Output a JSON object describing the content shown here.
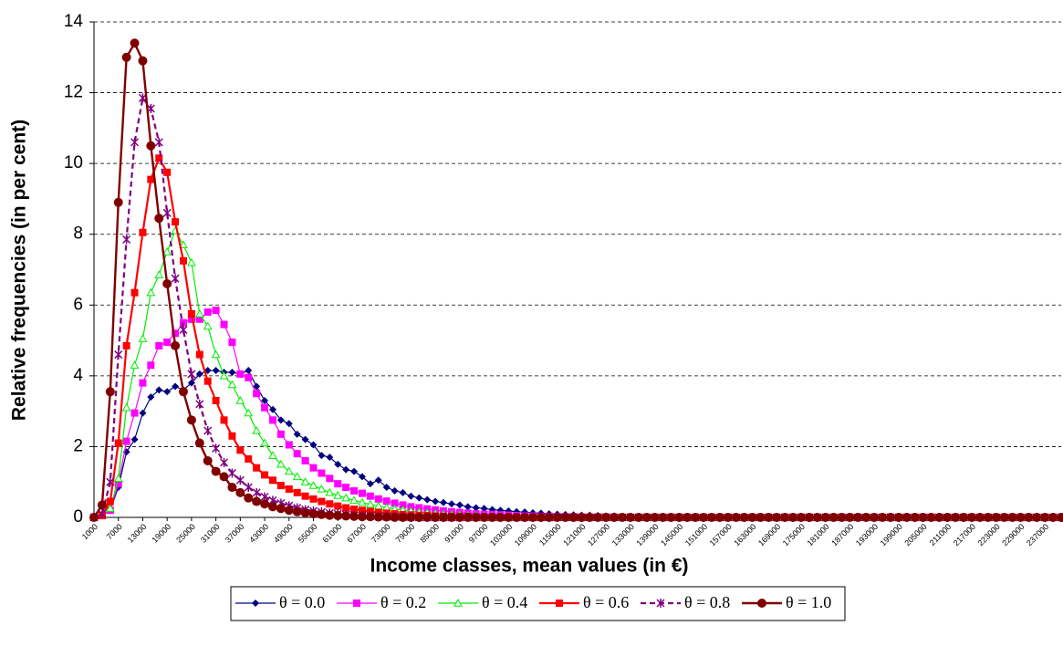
{
  "chart_data": {
    "type": "line",
    "x_label": "Income classes, mean values (in €)",
    "y_label": "Relative frequencies (in per cent)",
    "categories": [
      "1000",
      null,
      null,
      "7000",
      null,
      null,
      "13000",
      null,
      null,
      "19000",
      null,
      null,
      "25000",
      null,
      null,
      "31000",
      null,
      null,
      "37000",
      null,
      null,
      "43000",
      null,
      null,
      "49000",
      null,
      null,
      "55000",
      null,
      null,
      "61000",
      null,
      null,
      "67000",
      null,
      null,
      "73000",
      null,
      null,
      "79000",
      null,
      null,
      "85000",
      null,
      null,
      "91000",
      null,
      null,
      "97000",
      null,
      null,
      "103000",
      null,
      null,
      "109000",
      null,
      null,
      "115000",
      null,
      null,
      "121000",
      null,
      null,
      "127000",
      null,
      null,
      "133000",
      null,
      null,
      "139000",
      null,
      null,
      "145000",
      null,
      null,
      "151000",
      null,
      null,
      "157000",
      null,
      null,
      "163000",
      null,
      null,
      "169000",
      null,
      null,
      "175000",
      null,
      null,
      "181000",
      null,
      null,
      "187000",
      null,
      null,
      "193000",
      null,
      null,
      "199000",
      null,
      null,
      "205000",
      null,
      null,
      "211000",
      null,
      null,
      "217000",
      null,
      null,
      "223000",
      null,
      null,
      "229000",
      null,
      null,
      "237000",
      null,
      null
    ],
    "ylim": [
      0,
      14
    ],
    "yticks": [
      0,
      2,
      4,
      6,
      8,
      10,
      12,
      14
    ],
    "grid": true,
    "legend": "bottom",
    "series": [
      {
        "name": "θ = 0.0",
        "color": "#000080",
        "marker": "diamond",
        "dashed": false,
        "width": 1.2,
        "values": [
          0,
          0.05,
          0.2,
          0.85,
          1.85,
          2.2,
          2.95,
          3.4,
          3.6,
          3.55,
          3.7,
          3.6,
          3.8,
          4.05,
          4.15,
          4.15,
          4.1,
          4.1,
          4.05,
          4.15,
          3.7,
          3.3,
          3.05,
          2.75,
          2.65,
          2.35,
          2.2,
          2.05,
          1.75,
          1.7,
          1.5,
          1.35,
          1.3,
          1.15,
          0.95,
          1.05,
          0.85,
          0.75,
          0.7,
          0.6,
          0.55,
          0.5,
          0.45,
          0.42,
          0.38,
          0.35,
          0.3,
          0.27,
          0.25,
          0.22,
          0.2,
          0.18,
          0.16,
          0.15,
          0.13,
          0.12,
          0.1,
          0.09,
          0.08,
          0.07,
          0.06,
          0.06,
          0.05,
          0.04,
          0.04,
          0.03,
          0.03,
          0.03,
          0.02,
          0.02,
          0.02,
          0.02,
          0.01,
          0.01,
          0.01,
          0.01,
          0.01,
          0.01,
          0,
          0,
          0,
          0,
          0,
          0,
          0,
          0,
          0,
          0,
          0,
          0,
          0,
          0,
          0,
          0,
          0,
          0,
          0,
          0,
          0,
          0,
          0,
          0,
          0,
          0,
          0,
          0,
          0,
          0,
          0,
          0,
          0,
          0,
          0,
          0,
          0,
          0,
          0,
          0,
          0,
          0
        ]
      },
      {
        "name": "θ = 0.2",
        "color": "#ff00ff",
        "marker": "square",
        "dashed": false,
        "width": 1.2,
        "values": [
          0,
          0.05,
          0.2,
          0.95,
          2.15,
          2.95,
          3.8,
          4.3,
          4.85,
          4.95,
          5.2,
          5.5,
          5.6,
          5.6,
          5.8,
          5.85,
          5.45,
          4.95,
          4.05,
          3.95,
          3.5,
          3.1,
          2.75,
          2.35,
          2.05,
          1.8,
          1.6,
          1.4,
          1.25,
          1.1,
          0.95,
          0.85,
          0.75,
          0.68,
          0.6,
          0.52,
          0.46,
          0.4,
          0.35,
          0.3,
          0.27,
          0.24,
          0.21,
          0.18,
          0.16,
          0.14,
          0.12,
          0.1,
          0.09,
          0.08,
          0.07,
          0.06,
          0.05,
          0.04,
          0.04,
          0.03,
          0.03,
          0.02,
          0.02,
          0.02,
          0.01,
          0.01,
          0.01,
          0.01,
          0,
          0,
          0,
          0,
          0,
          0,
          0,
          0,
          0,
          0,
          0,
          0,
          0,
          0,
          0,
          0,
          0,
          0,
          0,
          0,
          0,
          0,
          0,
          0,
          0,
          0,
          0,
          0,
          0,
          0,
          0,
          0,
          0,
          0,
          0,
          0,
          0,
          0,
          0,
          0,
          0,
          0,
          0,
          0,
          0,
          0,
          0,
          0,
          0,
          0,
          0,
          0,
          0,
          0,
          0,
          0
        ]
      },
      {
        "name": "θ = 0.4",
        "color": "#00ee00",
        "marker": "triangle",
        "dashed": false,
        "width": 1.2,
        "values": [
          0,
          0.05,
          0.25,
          1.1,
          3.1,
          4.3,
          5.05,
          6.35,
          6.85,
          7.5,
          8.1,
          7.7,
          7.2,
          5.75,
          5.4,
          4.6,
          4.0,
          3.75,
          3.3,
          2.95,
          2.45,
          2.1,
          1.75,
          1.5,
          1.3,
          1.15,
          1.0,
          0.9,
          0.8,
          0.7,
          0.62,
          0.55,
          0.48,
          0.42,
          0.37,
          0.32,
          0.28,
          0.24,
          0.21,
          0.18,
          0.15,
          0.13,
          0.11,
          0.09,
          0.08,
          0.07,
          0.06,
          0.05,
          0.04,
          0.03,
          0.03,
          0.02,
          0.02,
          0.01,
          0.01,
          0.01,
          0,
          0,
          0,
          0,
          0,
          0,
          0,
          0,
          0,
          0,
          0,
          0,
          0,
          0,
          0,
          0,
          0,
          0,
          0,
          0,
          0,
          0,
          0,
          0,
          0,
          0,
          0,
          0,
          0,
          0,
          0,
          0,
          0,
          0,
          0,
          0,
          0,
          0,
          0,
          0,
          0,
          0,
          0,
          0,
          0,
          0,
          0,
          0,
          0,
          0,
          0,
          0,
          0,
          0,
          0,
          0,
          0,
          0,
          0,
          0,
          0,
          0,
          0,
          0
        ]
      },
      {
        "name": "θ = 0.6",
        "color": "#ff0000",
        "marker": "square",
        "dashed": false,
        "width": 2.2,
        "values": [
          0,
          0.05,
          0.45,
          2.1,
          4.85,
          6.35,
          8.05,
          9.55,
          10.15,
          9.75,
          8.35,
          7.25,
          5.75,
          4.6,
          3.85,
          3.3,
          2.75,
          2.3,
          1.9,
          1.65,
          1.4,
          1.2,
          1.05,
          0.9,
          0.8,
          0.7,
          0.6,
          0.52,
          0.45,
          0.38,
          0.32,
          0.27,
          0.23,
          0.2,
          0.17,
          0.14,
          0.12,
          0.1,
          0.08,
          0.07,
          0.06,
          0.05,
          0.04,
          0.03,
          0.03,
          0.02,
          0.02,
          0.01,
          0.01,
          0.01,
          0,
          0,
          0,
          0,
          0,
          0,
          0,
          0,
          0,
          0,
          0,
          0,
          0,
          0,
          0,
          0,
          0,
          0,
          0,
          0,
          0,
          0,
          0,
          0,
          0,
          0,
          0,
          0,
          0,
          0,
          0,
          0,
          0,
          0,
          0,
          0,
          0,
          0,
          0,
          0,
          0,
          0,
          0,
          0,
          0,
          0,
          0,
          0,
          0,
          0,
          0,
          0,
          0,
          0,
          0,
          0,
          0,
          0,
          0,
          0,
          0,
          0,
          0,
          0,
          0,
          0,
          0,
          0,
          0,
          0
        ]
      },
      {
        "name": "θ = 0.8",
        "color": "#800080",
        "marker": "star",
        "dashed": true,
        "width": 2.2,
        "values": [
          0,
          0.1,
          1.0,
          4.6,
          7.85,
          10.6,
          11.85,
          11.55,
          10.6,
          8.6,
          6.75,
          5.3,
          4.05,
          3.2,
          2.45,
          1.95,
          1.55,
          1.25,
          1.05,
          0.85,
          0.7,
          0.58,
          0.48,
          0.4,
          0.33,
          0.27,
          0.22,
          0.18,
          0.15,
          0.12,
          0.1,
          0.08,
          0.06,
          0.05,
          0.04,
          0.03,
          0.02,
          0.02,
          0.01,
          0.01,
          0,
          0,
          0,
          0,
          0,
          0,
          0,
          0,
          0,
          0,
          0,
          0,
          0,
          0,
          0,
          0,
          0,
          0,
          0,
          0,
          0,
          0,
          0,
          0,
          0,
          0,
          0,
          0,
          0,
          0,
          0,
          0,
          0,
          0,
          0,
          0,
          0,
          0,
          0,
          0,
          0,
          0,
          0,
          0,
          0,
          0,
          0,
          0,
          0,
          0,
          0,
          0,
          0,
          0,
          0,
          0,
          0,
          0,
          0,
          0,
          0,
          0,
          0,
          0,
          0,
          0,
          0,
          0,
          0,
          0,
          0,
          0,
          0,
          0,
          0,
          0,
          0,
          0,
          0,
          0
        ]
      },
      {
        "name": "θ = 1.0",
        "color": "#800000",
        "marker": "circle",
        "dashed": false,
        "width": 2.4,
        "values": [
          0,
          0.35,
          3.55,
          8.9,
          13.0,
          13.4,
          12.9,
          10.5,
          8.45,
          6.6,
          4.85,
          3.55,
          2.75,
          2.1,
          1.6,
          1.3,
          1.15,
          0.85,
          0.7,
          0.55,
          0.45,
          0.38,
          0.3,
          0.25,
          0.2,
          0.16,
          0.13,
          0.1,
          0.08,
          0.06,
          0.05,
          0.04,
          0.03,
          0.02,
          0.02,
          0.01,
          0.01,
          0,
          0,
          0,
          0,
          0,
          0,
          0,
          0,
          0,
          0,
          0,
          0,
          0,
          0,
          0,
          0,
          0,
          0,
          0,
          0,
          0,
          0,
          0,
          0,
          0,
          0,
          0,
          0,
          0,
          0,
          0,
          0,
          0,
          0,
          0,
          0,
          0,
          0,
          0,
          0,
          0,
          0,
          0,
          0,
          0,
          0,
          0,
          0,
          0,
          0,
          0,
          0,
          0,
          0,
          0,
          0,
          0,
          0,
          0,
          0,
          0,
          0,
          0,
          0,
          0,
          0,
          0,
          0,
          0,
          0,
          0,
          0,
          0,
          0,
          0,
          0,
          0,
          0,
          0,
          0,
          0,
          0,
          0
        ]
      }
    ]
  }
}
